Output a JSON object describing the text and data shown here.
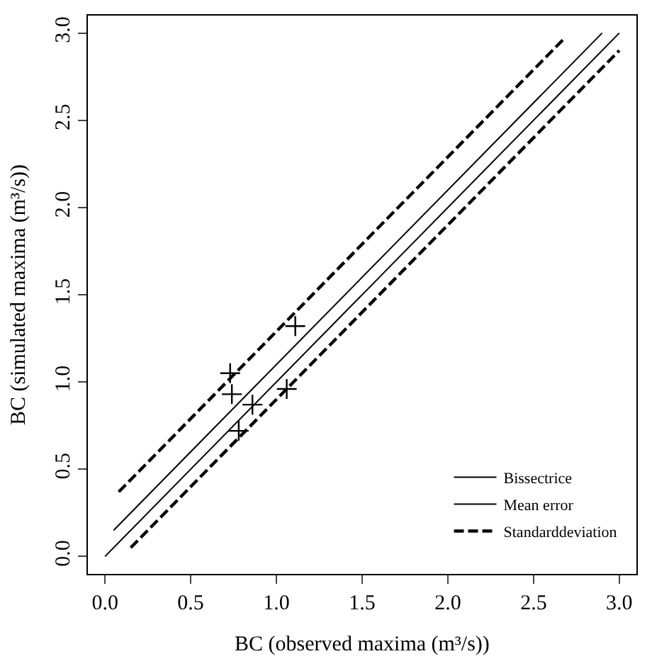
{
  "chart_data": {
    "type": "scatter",
    "xlabel": "BC (observed maxima (m³/s))",
    "ylabel": "BC (simulated maxima (m³/s))",
    "xlim": [
      -0.1,
      3.1
    ],
    "ylim": [
      -0.1,
      3.1
    ],
    "xticks": [
      {
        "value": 0,
        "label": "0.0"
      },
      {
        "value": 0.5,
        "label": "0.5"
      },
      {
        "value": 1,
        "label": "1.0"
      },
      {
        "value": 1.5,
        "label": "1.5"
      },
      {
        "value": 2,
        "label": "2.0"
      },
      {
        "value": 2.5,
        "label": "2.5"
      },
      {
        "value": 3,
        "label": "3.0"
      }
    ],
    "yticks": [
      {
        "value": 0,
        "label": "0.0"
      },
      {
        "value": 0.5,
        "label": "0.5"
      },
      {
        "value": 1,
        "label": "1.0"
      },
      {
        "value": 1.5,
        "label": "1.5"
      },
      {
        "value": 2,
        "label": "2.0"
      },
      {
        "value": 2.5,
        "label": "2.5"
      },
      {
        "value": 3,
        "label": "3.0"
      }
    ],
    "legend": "bottom right",
    "series": [
      {
        "marker": "cross",
        "color": "#000000",
        "x": [
          0.73,
          0.74,
          0.78,
          0.86,
          1.06,
          1.11
        ],
        "values": [
          1.05,
          0.93,
          0.72,
          0.87,
          0.96,
          1.32
        ]
      },
      {
        "type": "line",
        "name": "Bissectrice",
        "line_style": "solid",
        "color": "#000000",
        "x": [
          0,
          3
        ],
        "values": [
          0,
          3
        ]
      },
      {
        "type": "line",
        "name": "Mean error",
        "line_style": "solid",
        "color": "#000000",
        "x": [
          0.05,
          2.9
        ],
        "values": [
          0.15,
          3.0
        ]
      },
      {
        "type": "line",
        "name": "Standarddeviation",
        "line_style": "dashed",
        "color": "#000000",
        "x": [
          0.08,
          2.68
        ],
        "values": [
          0.37,
          2.97
        ]
      },
      {
        "type": "line",
        "line_style": "dashed",
        "color": "#000000",
        "x": [
          0.15,
          3.0
        ],
        "values": [
          0.05,
          2.9
        ]
      }
    ]
  }
}
